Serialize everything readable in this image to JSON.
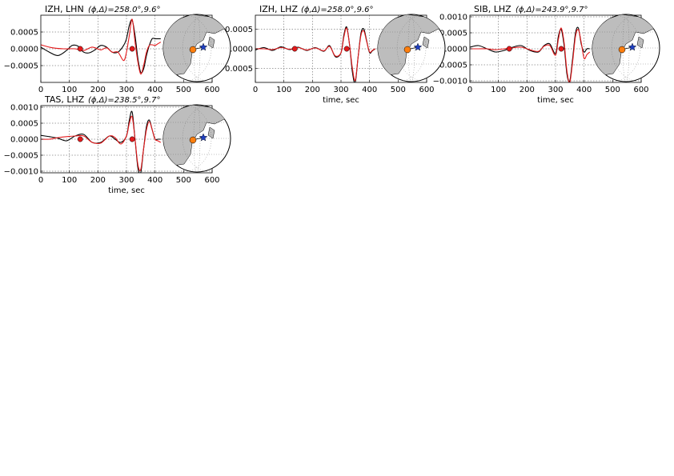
{
  "figure": {
    "trace_colors": {
      "observed": "#000000",
      "synthetic": "#e41a1c"
    },
    "marker_color": "#e41a1c",
    "map_colors": {
      "land": "#bdbdbd",
      "ocean": "#ffffff",
      "event": "#1f3fbf",
      "station": "#ff7f0e"
    }
  },
  "chart_data": [
    {
      "type": "line",
      "station": "IZH",
      "channel": "LHN",
      "title_prefix": "IZH, LHN",
      "title_params": "(ϕ,Δ)=258.0°,9.6°",
      "xlabel": "",
      "xlim": [
        0,
        600
      ],
      "ylim": [
        -0.001,
        0.001
      ],
      "xticks": [
        "0",
        "100",
        "200",
        "300",
        "400",
        "500",
        "600"
      ],
      "yticks": [
        0.0005,
        0.0,
        -0.0005
      ],
      "ytick_labels": [
        "0.0005",
        "0.0000",
        "−0.0005"
      ],
      "grid": true,
      "markers_x": [
        138,
        320
      ],
      "series": [
        {
          "role": "observed",
          "x": [
            0,
            30,
            60,
            90,
            110,
            130,
            150,
            170,
            190,
            210,
            230,
            250,
            270,
            290,
            300,
            310,
            320,
            330,
            340,
            350,
            360,
            370,
            380,
            390,
            400,
            410,
            420
          ],
          "y": [
            5e-05,
            -0.0001,
            -0.0002,
            -5e-05,
            0.0001,
            8e-05,
            -0.0001,
            -0.00012,
            -3e-05,
            0.0001,
            5e-05,
            -0.0001,
            -0.0001,
            0.0001,
            0.0003,
            0.0007,
            0.00085,
            0.0004,
            -0.0003,
            -0.0007,
            -0.0006,
            -0.0002,
            0.0001,
            0.0003,
            0.0003,
            0.0003,
            0.0003
          ]
        },
        {
          "role": "synthetic",
          "x": [
            0,
            40,
            80,
            120,
            150,
            180,
            210,
            230,
            250,
            270,
            290,
            300,
            310,
            320,
            330,
            340,
            350,
            360,
            370,
            380,
            390,
            400,
            410,
            420
          ],
          "y": [
            0.00012,
            3e-05,
            0,
            0,
            -5e-05,
            5e-05,
            -3e-05,
            3e-05,
            -0.0001,
            -0.0001,
            -0.00035,
            -0.0001,
            0.0004,
            0.00088,
            0.0002,
            -0.0004,
            -0.00075,
            -0.0005,
            -0.0001,
            0.0001,
            0.00012,
            0.0001,
            0.00015,
            0.0002
          ]
        }
      ]
    },
    {
      "type": "line",
      "station": "IZH",
      "channel": "LHZ",
      "title_prefix": "IZH, LHZ",
      "title_params": "(ϕ,Δ)=258.0°,9.6°",
      "xlabel": "time, sec",
      "xlim": [
        0,
        600
      ],
      "ylim": [
        -0.00085,
        0.00085
      ],
      "xticks": [
        "0",
        "100",
        "200",
        "300",
        "400",
        "500",
        "600"
      ],
      "yticks": [
        0.0005,
        0.0,
        -0.0005
      ],
      "ytick_labels": [
        "0.0005",
        "0.0000",
        "−0.0005"
      ],
      "grid": true,
      "markers_x": [
        138,
        320
      ],
      "series": [
        {
          "role": "observed",
          "x": [
            0,
            30,
            60,
            90,
            120,
            150,
            180,
            210,
            240,
            260,
            280,
            300,
            310,
            320,
            330,
            340,
            350,
            360,
            370,
            380,
            390,
            400,
            410,
            420
          ],
          "y": [
            -3e-05,
            3e-05,
            -4e-05,
            5e-05,
            -2e-05,
            4e-05,
            -4e-05,
            3e-05,
            -6e-05,
            8e-05,
            -0.0002,
            -0.0001,
            0.00035,
            0.00055,
            0.0001,
            -0.0006,
            -0.00085,
            -0.0002,
            0.0004,
            0.0005,
            0.0002,
            -0.0001,
            -5e-05,
            0.0
          ]
        },
        {
          "role": "synthetic",
          "x": [
            0,
            30,
            60,
            90,
            120,
            150,
            180,
            210,
            240,
            260,
            280,
            300,
            310,
            320,
            330,
            340,
            350,
            360,
            370,
            380,
            390,
            400,
            410,
            420
          ],
          "y": [
            0.0,
            0.0,
            -2e-05,
            3e-05,
            -1e-05,
            3e-05,
            -3e-05,
            2e-05,
            -5e-05,
            6e-05,
            -0.00018,
            -0.0001,
            0.0003,
            0.00052,
            0.0001,
            -0.0005,
            -0.0008,
            -0.0002,
            0.00035,
            0.00045,
            0.00018,
            -8e-05,
            -4e-05,
            0.0
          ]
        }
      ]
    },
    {
      "type": "line",
      "station": "SIB",
      "channel": "LHZ",
      "title_prefix": "SIB, LHZ",
      "title_params": "(ϕ,Δ)=243.9°,9.7°",
      "xlabel": "time, sec",
      "xlim": [
        0,
        600
      ],
      "ylim": [
        -0.00105,
        0.00105
      ],
      "xticks": [
        "0",
        "100",
        "200",
        "300",
        "400",
        "500",
        "600"
      ],
      "yticks": [
        0.001,
        0.0005,
        0.0,
        -0.0005,
        -0.001
      ],
      "ytick_labels": [
        "0.0010",
        "0.0005",
        "0.0000",
        "−0.0005",
        "−0.0010"
      ],
      "grid": true,
      "markers_x": [
        138,
        320
      ],
      "series": [
        {
          "role": "observed",
          "x": [
            0,
            30,
            60,
            90,
            120,
            150,
            180,
            210,
            240,
            260,
            280,
            300,
            310,
            320,
            330,
            340,
            350,
            360,
            370,
            380,
            390,
            400,
            410,
            420
          ],
          "y": [
            5e-05,
            0.0001,
            0.0,
            -0.0001,
            -5e-05,
            5e-05,
            0.0001,
            -5e-05,
            -0.0001,
            0.0001,
            0.00015,
            -0.00015,
            0.0004,
            0.0006,
            0.0001,
            -0.0008,
            -0.001,
            -0.0003,
            0.0005,
            0.00065,
            0.00015,
            -0.0001,
            0.0,
            0.0
          ]
        },
        {
          "role": "synthetic",
          "x": [
            0,
            30,
            60,
            90,
            120,
            150,
            180,
            210,
            240,
            260,
            280,
            300,
            310,
            320,
            330,
            340,
            350,
            360,
            370,
            380,
            390,
            400,
            410,
            420
          ],
          "y": [
            0.0,
            0.0,
            0.0,
            -3e-05,
            0.0,
            3e-05,
            5e-05,
            -3e-05,
            -8e-05,
            8e-05,
            0.0001,
            -0.0002,
            0.0003,
            0.00065,
            0.0002,
            -0.0007,
            -0.00105,
            -0.0004,
            0.0004,
            0.0006,
            0.0002,
            -0.0003,
            -0.00018,
            -0.0001
          ]
        }
      ]
    },
    {
      "type": "line",
      "station": "TAS",
      "channel": "LHZ",
      "title_prefix": "TAS, LHZ",
      "title_params": "(ϕ,Δ)=238.5°,9.7°",
      "xlabel": "time, sec",
      "xlim": [
        0,
        600
      ],
      "ylim": [
        -0.00105,
        0.00105
      ],
      "xticks": [
        "0",
        "100",
        "200",
        "300",
        "400",
        "500",
        "600"
      ],
      "yticks": [
        0.001,
        0.0005,
        0.0,
        -0.0005,
        -0.001
      ],
      "ytick_labels": [
        "0.0010",
        "0.0005",
        "0.0000",
        "−0.0005",
        "−0.0010"
      ],
      "grid": true,
      "markers_x": [
        138,
        320
      ],
      "series": [
        {
          "role": "observed",
          "x": [
            0,
            30,
            60,
            90,
            120,
            150,
            180,
            210,
            240,
            260,
            280,
            300,
            310,
            320,
            330,
            340,
            350,
            360,
            370,
            380,
            390,
            400,
            410,
            420
          ],
          "y": [
            0.00012,
            8e-05,
            3e-05,
            -5e-05,
            0.0001,
            0.00015,
            -0.0001,
            -0.0001,
            0.0001,
            0.0,
            -0.0001,
            0.0001,
            0.0006,
            0.00085,
            0.0,
            -0.0009,
            -0.00105,
            -0.0003,
            0.0004,
            0.0006,
            0.0003,
            0.0,
            0.0,
            0.0
          ]
        },
        {
          "role": "synthetic",
          "x": [
            0,
            30,
            60,
            90,
            120,
            150,
            180,
            210,
            240,
            260,
            280,
            300,
            310,
            320,
            330,
            340,
            350,
            360,
            370,
            380,
            390,
            400,
            410,
            420
          ],
          "y": [
            0.0,
            0.0,
            5e-05,
            8e-05,
            0.0001,
            0.0001,
            -0.0001,
            -0.00012,
            0.0001,
            5e-05,
            -0.00015,
            0.0001,
            0.0005,
            0.0007,
            0.0,
            -0.0008,
            -0.00095,
            -0.0003,
            0.0003,
            0.00055,
            0.0003,
            0.0,
            -5e-05,
            -0.0001
          ]
        }
      ]
    }
  ]
}
